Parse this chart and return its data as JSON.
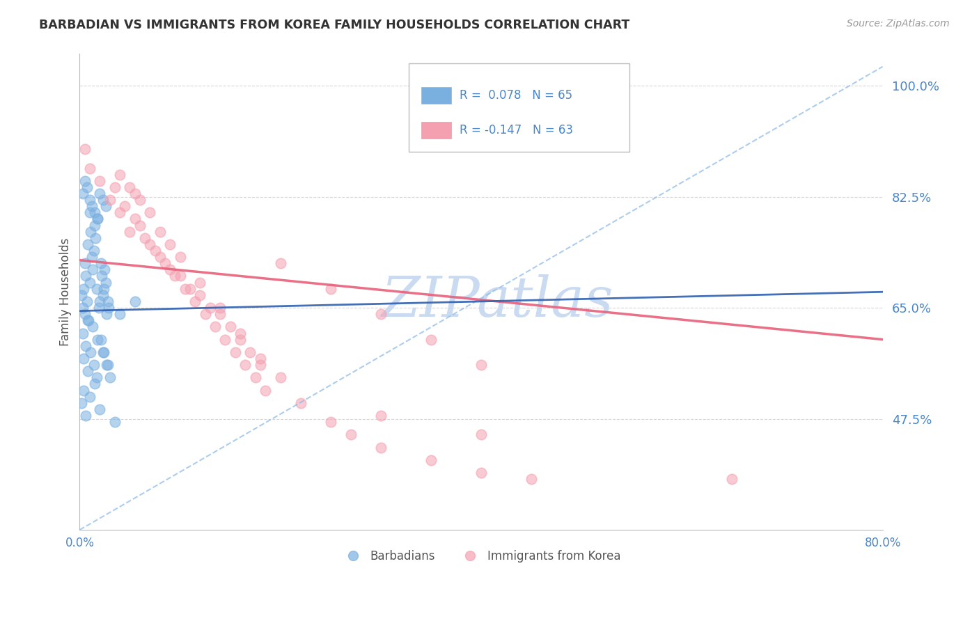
{
  "title": "BARBADIAN VS IMMIGRANTS FROM KOREA FAMILY HOUSEHOLDS CORRELATION CHART",
  "source": "Source: ZipAtlas.com",
  "ylabel": "Family Households",
  "xlim": [
    0.0,
    80.0
  ],
  "ylim": [
    30.0,
    105.0
  ],
  "yticks": [
    47.5,
    65.0,
    82.5,
    100.0
  ],
  "ytick_labels": [
    "47.5%",
    "65.0%",
    "82.5%",
    "100.0%"
  ],
  "blue_R": 0.078,
  "blue_N": 65,
  "pink_R": -0.147,
  "pink_N": 63,
  "blue_color": "#7ab0e0",
  "pink_color": "#f4a0b0",
  "blue_line_color": "#8ab8e8",
  "pink_line_color": "#e8607a",
  "axis_color": "#4a86c8",
  "grid_color": "#cccccc",
  "watermark": "ZIPatlas",
  "watermark_color": "#c5d8f0",
  "blue_scatter_x": [
    0.2,
    0.3,
    0.4,
    0.5,
    0.5,
    0.6,
    0.7,
    0.8,
    0.9,
    1.0,
    1.0,
    1.1,
    1.2,
    1.3,
    1.4,
    1.5,
    1.6,
    1.7,
    1.8,
    1.9,
    2.0,
    2.1,
    2.2,
    2.3,
    2.4,
    2.5,
    2.6,
    2.7,
    2.8,
    2.9,
    0.3,
    0.5,
    0.7,
    1.0,
    1.2,
    1.5,
    1.8,
    2.0,
    2.3,
    2.6,
    0.4,
    0.6,
    0.8,
    1.1,
    1.4,
    1.7,
    2.1,
    2.4,
    2.7,
    3.0,
    0.2,
    0.4,
    0.6,
    1.0,
    1.5,
    2.0,
    3.5,
    0.3,
    0.8,
    1.3,
    1.8,
    2.3,
    2.8,
    4.0,
    5.5
  ],
  "blue_scatter_y": [
    67.0,
    65.0,
    68.0,
    72.0,
    64.0,
    70.0,
    66.0,
    75.0,
    63.0,
    80.0,
    69.0,
    77.0,
    73.0,
    71.0,
    74.0,
    78.0,
    76.0,
    68.0,
    79.0,
    65.0,
    66.0,
    72.0,
    70.0,
    67.0,
    68.0,
    71.0,
    69.0,
    64.0,
    66.0,
    65.0,
    83.0,
    85.0,
    84.0,
    82.0,
    81.0,
    80.0,
    79.0,
    83.0,
    82.0,
    81.0,
    57.0,
    59.0,
    55.0,
    58.0,
    56.0,
    54.0,
    60.0,
    58.0,
    56.0,
    54.0,
    50.0,
    52.0,
    48.0,
    51.0,
    53.0,
    49.0,
    47.0,
    61.0,
    63.0,
    62.0,
    60.0,
    58.0,
    56.0,
    64.0,
    66.0
  ],
  "pink_scatter_x": [
    0.5,
    1.0,
    2.0,
    3.0,
    4.0,
    5.0,
    5.5,
    6.0,
    7.0,
    8.0,
    9.0,
    10.0,
    11.0,
    12.0,
    13.0,
    14.0,
    15.0,
    16.0,
    17.0,
    18.0,
    3.5,
    4.5,
    5.5,
    6.5,
    7.5,
    8.5,
    9.5,
    10.5,
    11.5,
    12.5,
    13.5,
    14.5,
    15.5,
    16.5,
    17.5,
    18.5,
    4.0,
    5.0,
    6.0,
    7.0,
    8.0,
    9.0,
    10.0,
    12.0,
    14.0,
    16.0,
    18.0,
    20.0,
    22.0,
    25.0,
    27.0,
    30.0,
    30.0,
    35.0,
    40.0,
    40.0,
    45.0,
    65.0,
    20.0,
    25.0,
    30.0,
    35.0,
    40.0
  ],
  "pink_scatter_y": [
    90.0,
    87.0,
    85.0,
    82.0,
    80.0,
    77.0,
    83.0,
    78.0,
    75.0,
    73.0,
    71.0,
    70.0,
    68.0,
    67.0,
    65.0,
    64.0,
    62.0,
    60.0,
    58.0,
    56.0,
    84.0,
    81.0,
    79.0,
    76.0,
    74.0,
    72.0,
    70.0,
    68.0,
    66.0,
    64.0,
    62.0,
    60.0,
    58.0,
    56.0,
    54.0,
    52.0,
    86.0,
    84.0,
    82.0,
    80.0,
    77.0,
    75.0,
    73.0,
    69.0,
    65.0,
    61.0,
    57.0,
    54.0,
    50.0,
    47.0,
    45.0,
    48.0,
    43.0,
    41.0,
    39.0,
    45.0,
    38.0,
    38.0,
    72.0,
    68.0,
    64.0,
    60.0,
    56.0
  ],
  "blue_line_x0": 0.0,
  "blue_line_x1": 80.0,
  "blue_line_y0": 64.5,
  "blue_line_y1": 67.5,
  "pink_line_x0": 0.0,
  "pink_line_x1": 80.0,
  "pink_line_y0": 72.5,
  "pink_line_y1": 60.0,
  "blue_dashed_x0": 0.0,
  "blue_dashed_x1": 80.0,
  "blue_dashed_y0": 30.0,
  "blue_dashed_y1": 103.0
}
